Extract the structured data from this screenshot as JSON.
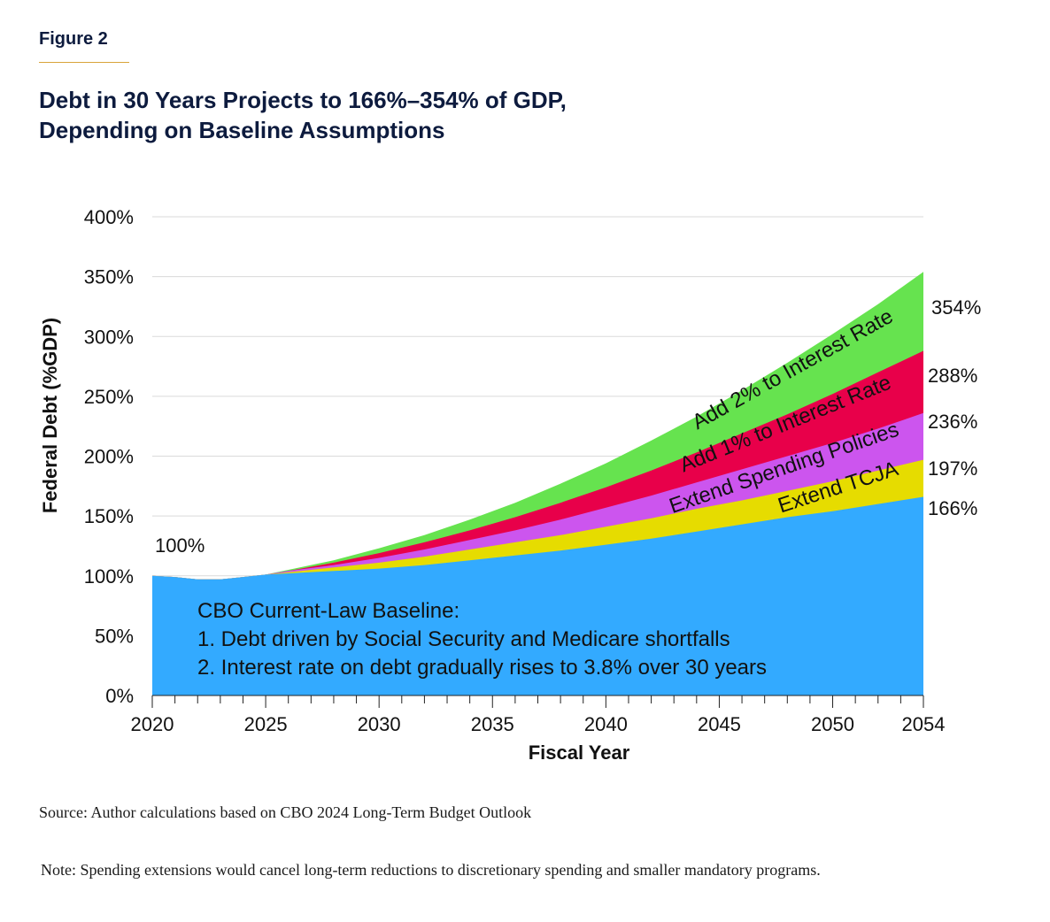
{
  "figure_label": "Figure 2",
  "title_lines": [
    "Debt in 30 Years Projects to 166%–354% of GDP,",
    "Depending on Baseline Assumptions"
  ],
  "source": "Source: Author calculations based on CBO 2024 Long-Term Budget Outlook",
  "note": "Note: Spending extensions would cancel long-term reductions to discretionary spending and smaller mandatory programs.",
  "chart_data": {
    "type": "area",
    "stacked": true,
    "title": "Debt in 30 Years Projects to 166%–354% of GDP, Depending on Baseline Assumptions",
    "xlabel": "Fiscal Year",
    "ylabel": "Federal Debt (%GDP)",
    "xlim": [
      2020,
      2054
    ],
    "ylim": [
      0,
      400
    ],
    "x_ticks": [
      "2020",
      "2025",
      "2030",
      "2035",
      "2040",
      "2045",
      "2050",
      "2054"
    ],
    "y_ticks": [
      "0%",
      "50%",
      "100%",
      "150%",
      "200%",
      "250%",
      "300%",
      "350%",
      "400%"
    ],
    "grid": "horizontal",
    "x": [
      2020,
      2021,
      2022,
      2023,
      2024,
      2025,
      2026,
      2028,
      2030,
      2032,
      2034,
      2036,
      2038,
      2040,
      2042,
      2044,
      2046,
      2048,
      2050,
      2052,
      2054
    ],
    "series": [
      {
        "name": "CBO Current-Law Baseline",
        "color": "#33aaff",
        "values": [
          100,
          99,
          97,
          97,
          99,
          101,
          102,
          104,
          106,
          109,
          113,
          117,
          121,
          126,
          131,
          137,
          143,
          149,
          154,
          160,
          166
        ]
      },
      {
        "name": "Extend TCJA",
        "color": "#e6dc00",
        "values": [
          100,
          99,
          97,
          97,
          99,
          101,
          103,
          107,
          111,
          116,
          122,
          128,
          134,
          141,
          148,
          156,
          163,
          171,
          179,
          188,
          197
        ]
      },
      {
        "name": "Extend Spending Policies",
        "color": "#cc55ee",
        "values": [
          100,
          99,
          97,
          97,
          99,
          101,
          104,
          109,
          115,
          122,
          130,
          138,
          147,
          157,
          167,
          178,
          189,
          200,
          211,
          223,
          236
        ]
      },
      {
        "name": "Add 1% to Interest Rate",
        "color": "#e8004a",
        "values": [
          100,
          99,
          97,
          97,
          99,
          101,
          104,
          111,
          119,
          128,
          138,
          149,
          161,
          174,
          188,
          203,
          219,
          235,
          252,
          270,
          288
        ]
      },
      {
        "name": "Add 2% to Interest Rate",
        "color": "#66e34f",
        "values": [
          100,
          99,
          97,
          97,
          99,
          101,
          105,
          113,
          123,
          134,
          147,
          161,
          177,
          194,
          213,
          233,
          255,
          278,
          302,
          327,
          354
        ]
      }
    ],
    "end_labels": [
      "166%",
      "197%",
      "236%",
      "288%",
      "354%"
    ],
    "start_label": "100%",
    "band_labels": [
      "Extend TCJA",
      "Extend Spending Policies",
      "Add 1% to Interest Rate",
      "Add 2% to Interest Rate"
    ],
    "baseline_text": [
      "CBO Current-Law Baseline:",
      "1. Debt driven by Social Security and Medicare shortfalls",
      "2. Interest rate on debt gradually rises to 3.8% over 30 years"
    ]
  }
}
